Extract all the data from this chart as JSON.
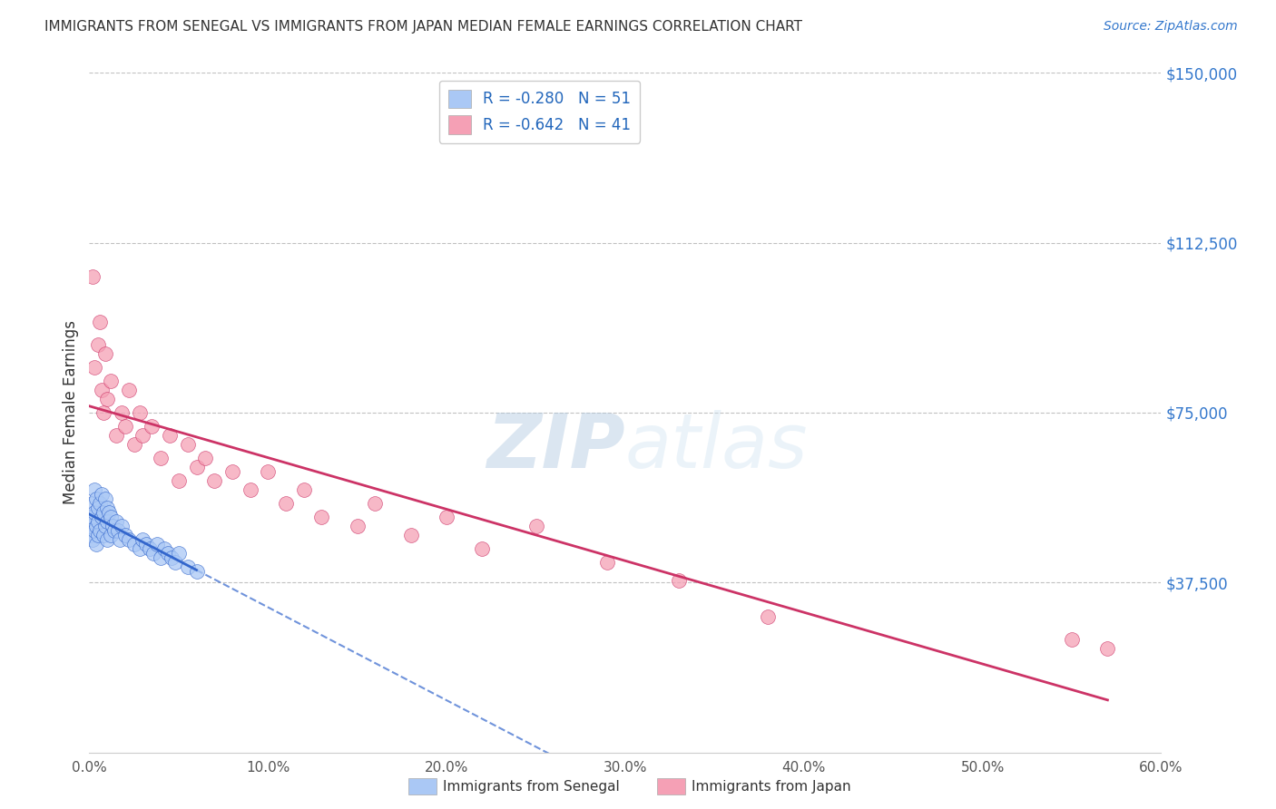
{
  "title": "IMMIGRANTS FROM SENEGAL VS IMMIGRANTS FROM JAPAN MEDIAN FEMALE EARNINGS CORRELATION CHART",
  "source": "Source: ZipAtlas.com",
  "ylabel": "Median Female Earnings",
  "legend_label_1": "Immigrants from Senegal",
  "legend_label_2": "Immigrants from Japan",
  "R1": -0.28,
  "N1": 51,
  "R2": -0.642,
  "N2": 41,
  "color1": "#aac8f5",
  "color1_line": "#3366cc",
  "color2": "#f5a0b5",
  "color2_line": "#cc3366",
  "xmin": 0.0,
  "xmax": 0.6,
  "ymin": 0,
  "ymax": 150000,
  "yticks": [
    37500,
    75000,
    112500,
    150000
  ],
  "ytick_labels": [
    "$37,500",
    "$75,000",
    "$112,500",
    "$150,000"
  ],
  "xticks": [
    0.0,
    0.1,
    0.2,
    0.3,
    0.4,
    0.5,
    0.6
  ],
  "xtick_labels": [
    "0.0%",
    "10.0%",
    "20.0%",
    "30.0%",
    "40.0%",
    "50.0%",
    "60.0%"
  ],
  "watermark": "ZIPatlas",
  "background_color": "#ffffff",
  "grid_color": "#bbbbbb",
  "senegal_x": [
    0.001,
    0.001,
    0.002,
    0.002,
    0.002,
    0.003,
    0.003,
    0.003,
    0.004,
    0.004,
    0.004,
    0.005,
    0.005,
    0.005,
    0.006,
    0.006,
    0.007,
    0.007,
    0.008,
    0.008,
    0.009,
    0.009,
    0.01,
    0.01,
    0.01,
    0.011,
    0.012,
    0.012,
    0.013,
    0.014,
    0.015,
    0.016,
    0.017,
    0.018,
    0.02,
    0.022,
    0.025,
    0.028,
    0.03,
    0.032,
    0.034,
    0.036,
    0.038,
    0.04,
    0.042,
    0.044,
    0.046,
    0.048,
    0.05,
    0.055,
    0.06
  ],
  "senegal_y": [
    50000,
    48000,
    55000,
    52000,
    47000,
    58000,
    53000,
    49000,
    56000,
    50000,
    46000,
    54000,
    51000,
    48000,
    55000,
    49000,
    57000,
    52000,
    53000,
    48000,
    56000,
    50000,
    54000,
    51000,
    47000,
    53000,
    52000,
    48000,
    50000,
    49000,
    51000,
    49000,
    47000,
    50000,
    48000,
    47000,
    46000,
    45000,
    47000,
    46000,
    45000,
    44000,
    46000,
    43000,
    45000,
    44000,
    43000,
    42000,
    44000,
    41000,
    40000
  ],
  "japan_x": [
    0.002,
    0.003,
    0.005,
    0.006,
    0.007,
    0.008,
    0.009,
    0.01,
    0.012,
    0.015,
    0.018,
    0.02,
    0.022,
    0.025,
    0.028,
    0.03,
    0.035,
    0.04,
    0.045,
    0.05,
    0.055,
    0.06,
    0.065,
    0.07,
    0.08,
    0.09,
    0.1,
    0.11,
    0.12,
    0.13,
    0.15,
    0.16,
    0.18,
    0.2,
    0.22,
    0.25,
    0.29,
    0.33,
    0.38,
    0.55,
    0.57
  ],
  "japan_y": [
    105000,
    85000,
    90000,
    95000,
    80000,
    75000,
    88000,
    78000,
    82000,
    70000,
    75000,
    72000,
    80000,
    68000,
    75000,
    70000,
    72000,
    65000,
    70000,
    60000,
    68000,
    63000,
    65000,
    60000,
    62000,
    58000,
    62000,
    55000,
    58000,
    52000,
    50000,
    55000,
    48000,
    52000,
    45000,
    50000,
    42000,
    38000,
    30000,
    25000,
    23000
  ]
}
